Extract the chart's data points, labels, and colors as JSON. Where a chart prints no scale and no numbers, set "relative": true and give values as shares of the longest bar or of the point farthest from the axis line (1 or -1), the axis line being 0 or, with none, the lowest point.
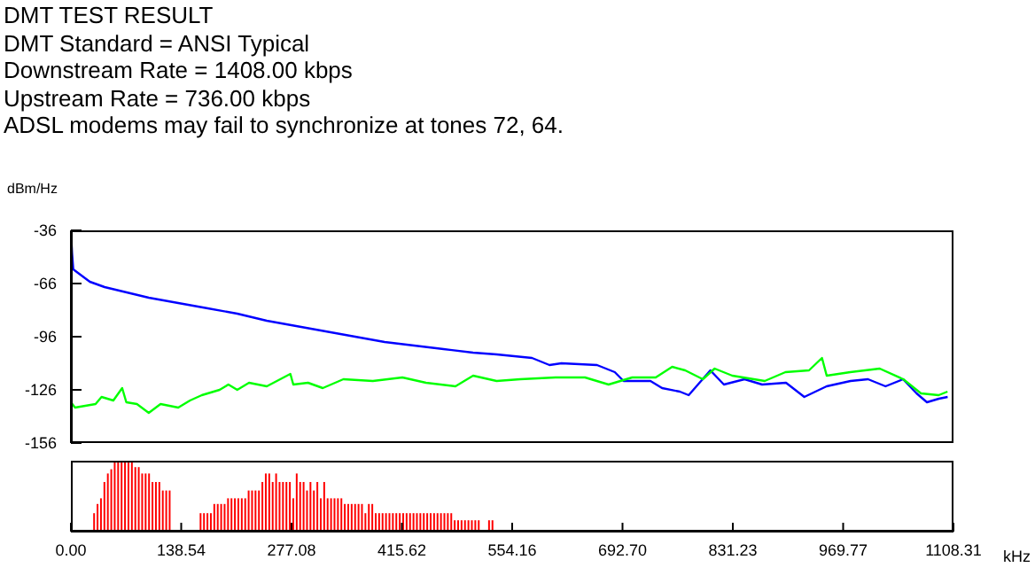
{
  "chart_data": [
    {
      "type": "line",
      "title": "DMT TEST RESULT",
      "annotations": [
        "DMT Standard = ANSI Typical",
        "Downstream Rate = 1408.00 kbps",
        "Upstream Rate = 736.00 kbps",
        "ADSL modems may fail to synchronize at tones 72, 64."
      ],
      "ylabel": "dBm/Hz",
      "marker": "none",
      "tick_labels": "y",
      "xlim": [
        0,
        1108.31
      ],
      "ylim": [
        -156,
        -36
      ],
      "yticks": [
        -36,
        -66,
        -96,
        -126,
        -156
      ],
      "series": [
        {
          "color": "#0000ff",
          "x": [
            0,
            1.5,
            3,
            8.9,
            23.8,
            42.3,
            60.8,
            97.8,
            134.8,
            171.9,
            208.9,
            246,
            283,
            320,
            357,
            394,
            431,
            468,
            505,
            534.6,
            579,
            601,
            616,
            660.7,
            683,
            694,
            727.8,
            742.4,
            764.7,
            775.8,
            803,
            820,
            846,
            868,
            898,
            921,
            949,
            979,
            1001,
            1023,
            1045,
            1062,
            1075,
            1090,
            1101
          ],
          "values": [
            -36,
            -49,
            -58,
            -60,
            -65,
            -68,
            -70,
            -74,
            -77,
            -80,
            -83,
            -87,
            -90,
            -93,
            -96,
            -99,
            -101,
            -103,
            -105,
            -106,
            -108,
            -112,
            -111,
            -112,
            -116,
            -121,
            -121,
            -125,
            -127,
            -129,
            -115,
            -123,
            -120,
            -123,
            -122,
            -130,
            -124,
            -121,
            -120,
            -124,
            -120,
            -128,
            -133,
            -131,
            -130
          ]
        },
        {
          "color": "#00ff00",
          "x": [
            0,
            5.2,
            31,
            38.5,
            53.3,
            64.4,
            69.6,
            82.9,
            97.8,
            112.6,
            134.8,
            149.6,
            164.4,
            186.7,
            197.8,
            208.9,
            223.7,
            246,
            275.6,
            279.3,
            297.8,
            316.3,
            342.2,
            379.2,
            416.3,
            445.9,
            482.9,
            505.1,
            534.6,
            564.2,
            608.6,
            645.6,
            675.2,
            704.8,
            734.4,
            755.1,
            771.4,
            793.6,
            808.4,
            830.6,
            871.3,
            897.3,
            926.9,
            943.2,
            949.1,
            978.7,
            1015.7,
            1045.3,
            1067.5,
            1089.7,
            1100.8
          ],
          "values": [
            -133,
            -136,
            -134,
            -130,
            -132,
            -125,
            -133,
            -134,
            -139,
            -134,
            -136,
            -132,
            -129,
            -126,
            -123,
            -126,
            -122,
            -124,
            -117,
            -123,
            -122,
            -125,
            -120,
            -121,
            -119,
            -122,
            -124,
            -118,
            -121,
            -120,
            -119,
            -119,
            -123,
            -119,
            -119,
            -113,
            -115,
            -120,
            -114,
            -118,
            -121,
            -116,
            -115,
            -108,
            -118,
            -116,
            -114,
            -120,
            -128,
            -129,
            -127
          ]
        }
      ]
    },
    {
      "type": "bar",
      "relative": true,
      "color": "#ff0000",
      "xlabel": "kHz",
      "tick_labels": "x",
      "xlim": [
        0,
        1108.31
      ],
      "xticks": [
        {
          "value": 0,
          "label": "0.00"
        },
        138.54,
        277.08,
        415.62,
        554.16,
        {
          "value": 692.7,
          "label": "692.70"
        },
        831.23,
        969.77,
        1108.31
      ],
      "x": [
        30.19,
        34.5,
        38.81,
        43.13,
        47.44,
        51.75,
        56.06,
        60.38,
        64.69,
        69,
        73.31,
        77.63,
        81.94,
        86.25,
        90.56,
        94.88,
        99.19,
        103.5,
        107.81,
        112.13,
        116.44,
        120.75,
        125.06,
        163.88,
        168.19,
        172.5,
        176.81,
        181.13,
        185.44,
        189.75,
        194.06,
        198.38,
        202.69,
        207,
        211.31,
        215.63,
        219.94,
        224.25,
        228.56,
        232.88,
        237.19,
        241.5,
        245.81,
        250.13,
        254.44,
        258.75,
        263.06,
        267.38,
        271.69,
        276,
        280.31,
        284.63,
        288.94,
        293.25,
        297.56,
        301.88,
        306.19,
        310.5,
        314.81,
        319.13,
        323.44,
        327.75,
        332.06,
        336.38,
        340.69,
        345,
        349.31,
        353.63,
        357.94,
        362.25,
        366.56,
        370.88,
        375.19,
        379.5,
        383.81,
        388.13,
        392.44,
        396.75,
        401.06,
        405.38,
        409.69,
        414,
        418.31,
        422.63,
        426.94,
        431.25,
        435.56,
        439.88,
        444.19,
        448.5,
        452.81,
        457.13,
        461.44,
        465.75,
        470.06,
        474.38,
        478.69,
        483,
        487.31,
        491.63,
        495.94,
        500.25,
        504.56,
        508.88,
        513.19,
        526.13,
        530.44
      ],
      "values": [
        0.26,
        0.39,
        0.47,
        0.7,
        0.82,
        0.88,
        1,
        1,
        1,
        1,
        1,
        1,
        0.91,
        0.91,
        0.82,
        0.82,
        0.82,
        0.7,
        0.7,
        0.7,
        0.58,
        0.58,
        0.58,
        0.26,
        0.26,
        0.26,
        0.26,
        0.39,
        0.39,
        0.39,
        0.39,
        0.47,
        0.47,
        0.47,
        0.47,
        0.47,
        0.47,
        0.58,
        0.58,
        0.58,
        0.58,
        0.7,
        0.82,
        0.82,
        0.7,
        0.82,
        0.7,
        0.7,
        0.7,
        0.7,
        0.47,
        0.82,
        0.7,
        0.7,
        0.58,
        0.7,
        0.58,
        0.7,
        0.47,
        0.7,
        0.47,
        0.47,
        0.47,
        0.47,
        0.47,
        0.39,
        0.39,
        0.39,
        0.39,
        0.39,
        0.39,
        0.26,
        0.39,
        0.39,
        0.26,
        0.26,
        0.26,
        0.26,
        0.26,
        0.26,
        0.26,
        0.26,
        0.26,
        0.26,
        0.26,
        0.26,
        0.26,
        0.26,
        0.26,
        0.26,
        0.26,
        0.26,
        0.26,
        0.26,
        0.26,
        0.26,
        0.26,
        0.16,
        0.16,
        0.16,
        0.16,
        0.16,
        0.16,
        0.16,
        0.16,
        0.16,
        0.16
      ]
    }
  ]
}
